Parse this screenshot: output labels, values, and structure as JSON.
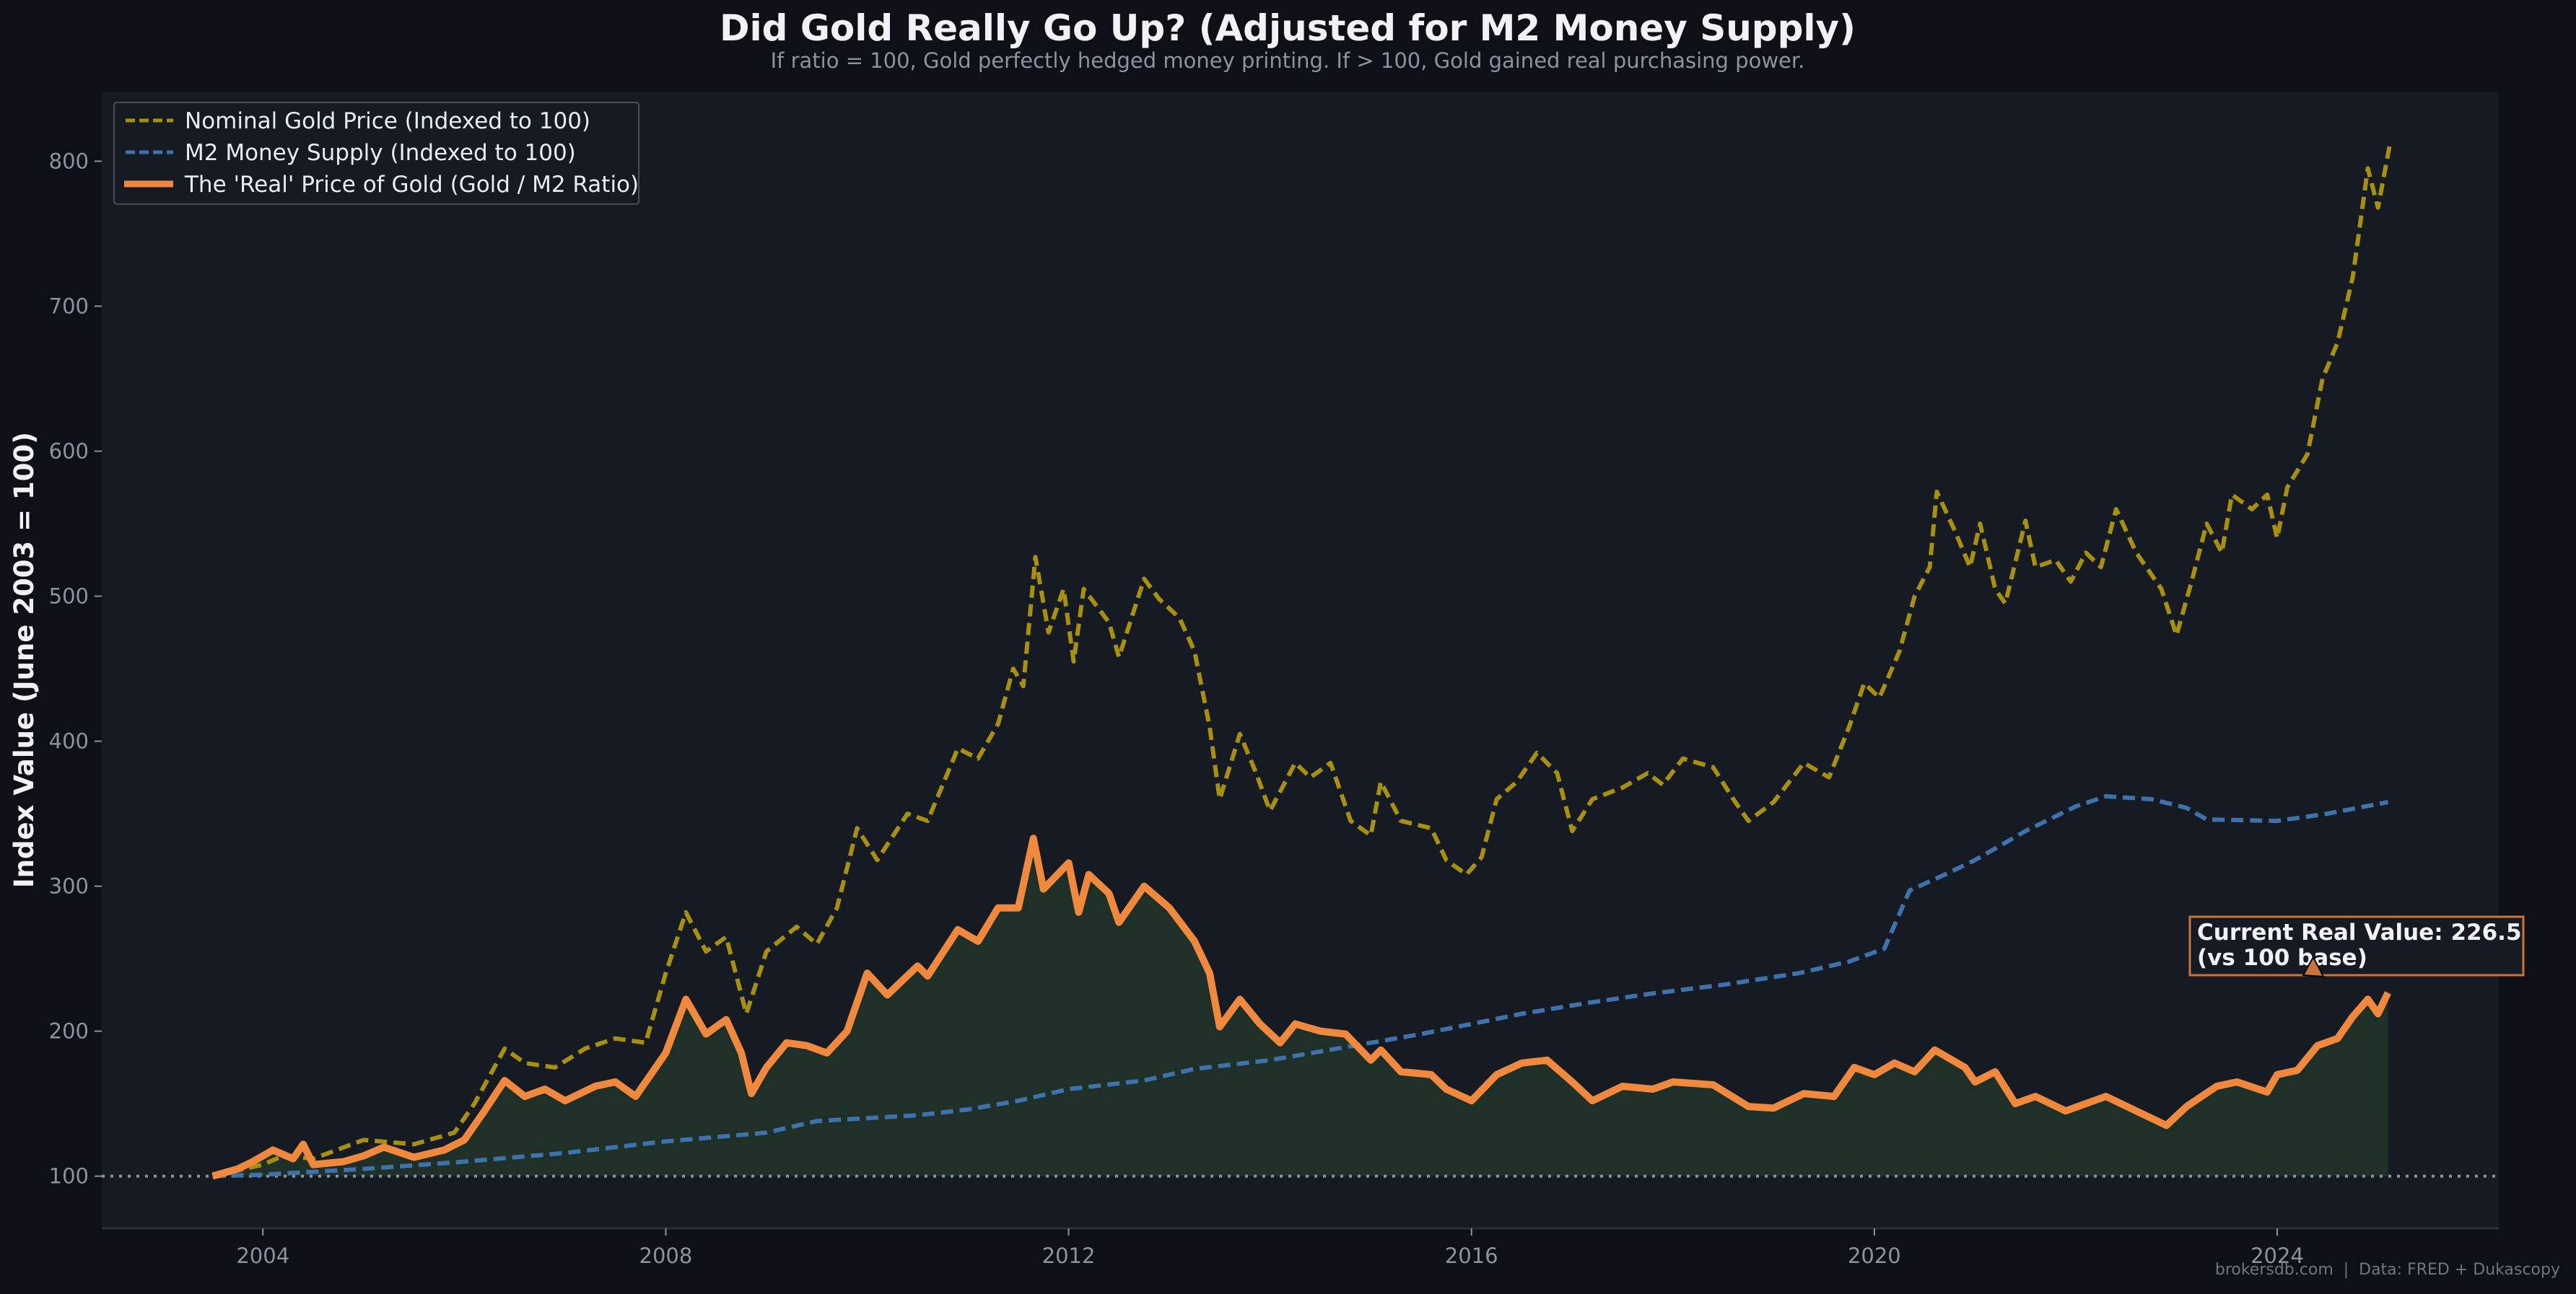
{
  "colors": {
    "background": "#0d1117",
    "plot_background": "#161a22",
    "nominal_gold": "#a8900f",
    "m2": "#3d72ad",
    "real_gold": "#f0883e",
    "real_fill": "#1e3028",
    "baseline": "#8b949e"
  },
  "chart_data": {
    "type": "line",
    "title": "Did Gold Really Go Up? (Adjusted for M2 Money Supply)",
    "subtitle": "If ratio = 100, Gold perfectly hedged money printing. If > 100, Gold gained real purchasing power.",
    "xlabel": "",
    "ylabel": "Index Value (June 2003 = 100)",
    "xlim": [
      2002.4,
      2026.2
    ],
    "ylim": [
      64,
      848
    ],
    "x_ticks": [
      "2004",
      "2008",
      "2012",
      "2016",
      "2020",
      "2024"
    ],
    "y_ticks": [
      "100",
      "200",
      "300",
      "400",
      "500",
      "600",
      "700",
      "800"
    ],
    "grid": false,
    "legend_position": "top-left",
    "baseline": 100,
    "series": [
      {
        "name": "Nominal Gold Price (Indexed to 100)",
        "style": "dashed",
        "color": "#a8900f",
        "points": [
          [
            2003.5,
            100
          ],
          [
            2004.0,
            108
          ],
          [
            2004.2,
            114
          ],
          [
            2004.5,
            112
          ],
          [
            2005.0,
            125
          ],
          [
            2005.5,
            122
          ],
          [
            2005.9,
            130
          ],
          [
            2006.1,
            150
          ],
          [
            2006.4,
            188
          ],
          [
            2006.6,
            178
          ],
          [
            2006.9,
            175
          ],
          [
            2007.2,
            188
          ],
          [
            2007.5,
            195
          ],
          [
            2007.8,
            192
          ],
          [
            2008.0,
            240
          ],
          [
            2008.2,
            282
          ],
          [
            2008.4,
            255
          ],
          [
            2008.6,
            265
          ],
          [
            2008.8,
            212
          ],
          [
            2009.0,
            255
          ],
          [
            2009.3,
            272
          ],
          [
            2009.5,
            260
          ],
          [
            2009.7,
            285
          ],
          [
            2009.9,
            340
          ],
          [
            2010.1,
            318
          ],
          [
            2010.4,
            350
          ],
          [
            2010.6,
            345
          ],
          [
            2010.9,
            395
          ],
          [
            2011.1,
            388
          ],
          [
            2011.3,
            412
          ],
          [
            2011.45,
            450
          ],
          [
            2011.55,
            438
          ],
          [
            2011.67,
            527
          ],
          [
            2011.8,
            475
          ],
          [
            2011.95,
            505
          ],
          [
            2012.05,
            455
          ],
          [
            2012.15,
            505
          ],
          [
            2012.4,
            482
          ],
          [
            2012.5,
            458
          ],
          [
            2012.75,
            512
          ],
          [
            2012.9,
            498
          ],
          [
            2013.1,
            485
          ],
          [
            2013.25,
            462
          ],
          [
            2013.4,
            410
          ],
          [
            2013.5,
            360
          ],
          [
            2013.7,
            405
          ],
          [
            2013.85,
            380
          ],
          [
            2014.0,
            352
          ],
          [
            2014.25,
            385
          ],
          [
            2014.4,
            375
          ],
          [
            2014.6,
            385
          ],
          [
            2014.8,
            345
          ],
          [
            2015.0,
            335
          ],
          [
            2015.1,
            372
          ],
          [
            2015.3,
            345
          ],
          [
            2015.6,
            340
          ],
          [
            2015.75,
            318
          ],
          [
            2015.95,
            308
          ],
          [
            2016.1,
            320
          ],
          [
            2016.25,
            360
          ],
          [
            2016.45,
            372
          ],
          [
            2016.65,
            392
          ],
          [
            2016.85,
            378
          ],
          [
            2017.0,
            338
          ],
          [
            2017.2,
            360
          ],
          [
            2017.5,
            368
          ],
          [
            2017.75,
            378
          ],
          [
            2017.9,
            370
          ],
          [
            2018.1,
            388
          ],
          [
            2018.4,
            382
          ],
          [
            2018.6,
            360
          ],
          [
            2018.75,
            345
          ],
          [
            2019.0,
            358
          ],
          [
            2019.3,
            385
          ],
          [
            2019.55,
            375
          ],
          [
            2019.75,
            410
          ],
          [
            2019.9,
            440
          ],
          [
            2020.05,
            430
          ],
          [
            2020.25,
            462
          ],
          [
            2020.4,
            500
          ],
          [
            2020.55,
            520
          ],
          [
            2020.62,
            572
          ],
          [
            2020.8,
            545
          ],
          [
            2020.95,
            520
          ],
          [
            2021.05,
            550
          ],
          [
            2021.2,
            505
          ],
          [
            2021.3,
            495
          ],
          [
            2021.5,
            552
          ],
          [
            2021.6,
            520
          ],
          [
            2021.8,
            525
          ],
          [
            2021.95,
            510
          ],
          [
            2022.1,
            530
          ],
          [
            2022.25,
            520
          ],
          [
            2022.4,
            560
          ],
          [
            2022.6,
            530
          ],
          [
            2022.85,
            505
          ],
          [
            2023.0,
            473
          ],
          [
            2023.15,
            510
          ],
          [
            2023.3,
            550
          ],
          [
            2023.45,
            530
          ],
          [
            2023.55,
            570
          ],
          [
            2023.75,
            560
          ],
          [
            2023.9,
            570
          ],
          [
            2024.0,
            540
          ],
          [
            2024.1,
            575
          ],
          [
            2024.3,
            598
          ],
          [
            2024.45,
            650
          ],
          [
            2024.6,
            675
          ],
          [
            2024.75,
            720
          ],
          [
            2024.9,
            795
          ],
          [
            2025.0,
            768
          ],
          [
            2025.12,
            812
          ]
        ]
      },
      {
        "name": "M2 Money Supply (Indexed to 100)",
        "style": "dashed",
        "color": "#3d72ad",
        "points": [
          [
            2003.5,
            100
          ],
          [
            2004.0,
            101
          ],
          [
            2004.5,
            103
          ],
          [
            2005.0,
            105
          ],
          [
            2006.0,
            110
          ],
          [
            2007.0,
            116
          ],
          [
            2007.5,
            120
          ],
          [
            2008.0,
            124
          ],
          [
            2008.5,
            127
          ],
          [
            2009.0,
            130
          ],
          [
            2009.5,
            138
          ],
          [
            2010.0,
            140
          ],
          [
            2010.5,
            142
          ],
          [
            2011.0,
            146
          ],
          [
            2011.5,
            152
          ],
          [
            2012.0,
            160
          ],
          [
            2012.75,
            166
          ],
          [
            2013.25,
            174
          ],
          [
            2014.0,
            180
          ],
          [
            2014.5,
            186
          ],
          [
            2015.0,
            192
          ],
          [
            2015.5,
            198
          ],
          [
            2016.0,
            205
          ],
          [
            2016.5,
            212
          ],
          [
            2017.2,
            220
          ],
          [
            2017.8,
            226
          ],
          [
            2018.5,
            232
          ],
          [
            2019.25,
            240
          ],
          [
            2019.75,
            248
          ],
          [
            2020.1,
            257
          ],
          [
            2020.35,
            297
          ],
          [
            2020.7,
            308
          ],
          [
            2021.0,
            318
          ],
          [
            2021.5,
            338
          ],
          [
            2022.0,
            355
          ],
          [
            2022.3,
            362
          ],
          [
            2022.75,
            360
          ],
          [
            2023.1,
            354
          ],
          [
            2023.3,
            346
          ],
          [
            2024.0,
            345
          ],
          [
            2024.5,
            350
          ],
          [
            2025.1,
            358
          ]
        ]
      },
      {
        "name": "The 'Real' Price of Gold (Gold / M2 Ratio)",
        "style": "solid",
        "color": "#f0883e",
        "points": [
          [
            2003.5,
            100
          ],
          [
            2003.75,
            105
          ],
          [
            2003.9,
            110
          ],
          [
            2004.1,
            118
          ],
          [
            2004.3,
            112
          ],
          [
            2004.4,
            122
          ],
          [
            2004.5,
            108
          ],
          [
            2004.8,
            110
          ],
          [
            2005.0,
            114
          ],
          [
            2005.2,
            120
          ],
          [
            2005.5,
            113
          ],
          [
            2005.8,
            118
          ],
          [
            2006.0,
            125
          ],
          [
            2006.2,
            145
          ],
          [
            2006.4,
            166
          ],
          [
            2006.6,
            155
          ],
          [
            2006.8,
            160
          ],
          [
            2007.0,
            152
          ],
          [
            2007.3,
            162
          ],
          [
            2007.5,
            165
          ],
          [
            2007.7,
            155
          ],
          [
            2008.0,
            185
          ],
          [
            2008.2,
            222
          ],
          [
            2008.4,
            198
          ],
          [
            2008.6,
            208
          ],
          [
            2008.75,
            185
          ],
          [
            2008.85,
            157
          ],
          [
            2009.0,
            175
          ],
          [
            2009.2,
            192
          ],
          [
            2009.4,
            190
          ],
          [
            2009.6,
            185
          ],
          [
            2009.8,
            200
          ],
          [
            2010.0,
            240
          ],
          [
            2010.2,
            225
          ],
          [
            2010.5,
            245
          ],
          [
            2010.6,
            238
          ],
          [
            2010.9,
            270
          ],
          [
            2011.1,
            262
          ],
          [
            2011.3,
            285
          ],
          [
            2011.5,
            285
          ],
          [
            2011.65,
            333
          ],
          [
            2011.75,
            298
          ],
          [
            2012.0,
            316
          ],
          [
            2012.1,
            282
          ],
          [
            2012.2,
            308
          ],
          [
            2012.4,
            295
          ],
          [
            2012.5,
            275
          ],
          [
            2012.75,
            300
          ],
          [
            2013.0,
            285
          ],
          [
            2013.25,
            262
          ],
          [
            2013.4,
            240
          ],
          [
            2013.5,
            203
          ],
          [
            2013.7,
            222
          ],
          [
            2013.9,
            205
          ],
          [
            2014.1,
            192
          ],
          [
            2014.25,
            205
          ],
          [
            2014.5,
            200
          ],
          [
            2014.75,
            198
          ],
          [
            2015.0,
            180
          ],
          [
            2015.1,
            187
          ],
          [
            2015.3,
            172
          ],
          [
            2015.6,
            170
          ],
          [
            2015.75,
            160
          ],
          [
            2016.0,
            152
          ],
          [
            2016.25,
            170
          ],
          [
            2016.5,
            178
          ],
          [
            2016.75,
            180
          ],
          [
            2017.0,
            165
          ],
          [
            2017.2,
            152
          ],
          [
            2017.5,
            162
          ],
          [
            2017.8,
            160
          ],
          [
            2018.0,
            165
          ],
          [
            2018.4,
            163
          ],
          [
            2018.75,
            148
          ],
          [
            2019.0,
            147
          ],
          [
            2019.3,
            157
          ],
          [
            2019.6,
            155
          ],
          [
            2019.8,
            175
          ],
          [
            2020.0,
            170
          ],
          [
            2020.2,
            178
          ],
          [
            2020.4,
            172
          ],
          [
            2020.6,
            187
          ],
          [
            2020.9,
            175
          ],
          [
            2021.0,
            165
          ],
          [
            2021.2,
            172
          ],
          [
            2021.4,
            150
          ],
          [
            2021.6,
            155
          ],
          [
            2021.9,
            145
          ],
          [
            2022.1,
            150
          ],
          [
            2022.3,
            155
          ],
          [
            2022.6,
            145
          ],
          [
            2022.9,
            135
          ],
          [
            2023.1,
            148
          ],
          [
            2023.4,
            162
          ],
          [
            2023.6,
            165
          ],
          [
            2023.9,
            158
          ],
          [
            2024.0,
            170
          ],
          [
            2024.2,
            173
          ],
          [
            2024.4,
            190
          ],
          [
            2024.6,
            195
          ],
          [
            2024.75,
            210
          ],
          [
            2024.9,
            222
          ],
          [
            2025.0,
            212
          ],
          [
            2025.1,
            226.5
          ]
        ]
      }
    ],
    "annotation": {
      "line1": "Current Real Value: 226.5",
      "line2": "(vs 100 base)"
    }
  },
  "footer": "brokersdb.com  |  Data: FRED + Dukascopy"
}
